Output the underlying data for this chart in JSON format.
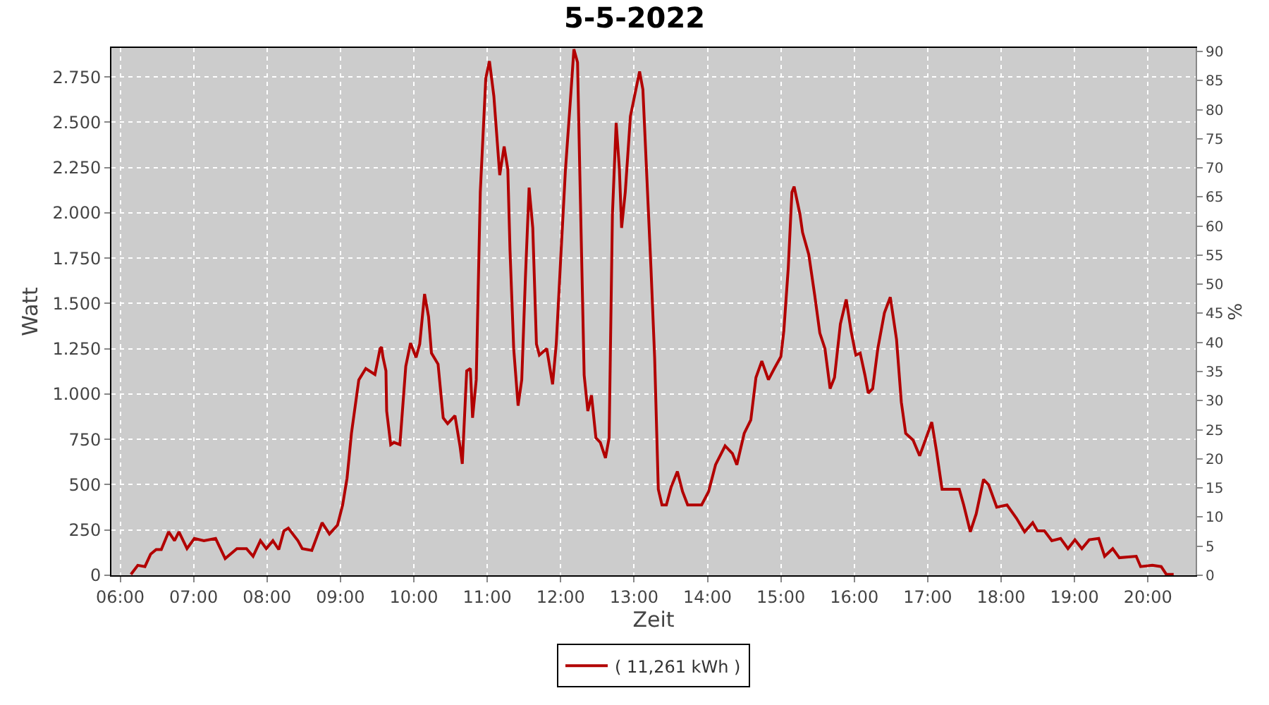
{
  "chart_data": {
    "type": "line",
    "title": "5-5-2022",
    "xlabel": "Zeit",
    "ylabel": "Watt",
    "y2label": "%",
    "x": [
      6.146,
      6.24,
      6.337,
      6.415,
      6.49,
      6.56,
      6.66,
      6.74,
      6.8,
      6.91,
      7.01,
      7.14,
      7.3,
      7.43,
      7.59,
      7.72,
      7.81,
      7.91,
      7.99,
      8.08,
      8.16,
      8.23,
      8.29,
      8.42,
      8.48,
      8.61,
      8.75,
      8.85,
      8.96,
      9.03,
      9.09,
      9.15,
      9.25,
      9.345,
      9.47,
      9.54,
      9.56,
      9.58,
      9.62,
      9.63,
      9.685,
      9.73,
      9.81,
      9.89,
      9.955,
      10.03,
      10.08,
      10.146,
      10.2,
      10.24,
      10.33,
      10.4,
      10.46,
      10.56,
      10.63,
      10.66,
      10.72,
      10.77,
      10.8,
      10.85,
      10.905,
      10.98,
      11.03,
      11.09,
      11.17,
      11.23,
      11.28,
      11.31,
      11.36,
      11.42,
      11.47,
      11.52,
      11.57,
      11.62,
      11.67,
      11.71,
      11.81,
      11.89,
      11.94,
      12.0,
      12.065,
      12.13,
      12.18,
      12.23,
      12.26,
      12.32,
      12.37,
      12.42,
      12.48,
      12.54,
      12.61,
      12.66,
      12.705,
      12.756,
      12.8,
      12.83,
      12.88,
      12.95,
      13.075,
      13.12,
      13.23,
      13.28,
      13.33,
      13.38,
      13.44,
      13.505,
      13.59,
      13.66,
      13.73,
      13.92,
      14.015,
      14.11,
      14.24,
      14.34,
      14.4,
      14.5,
      14.59,
      14.66,
      14.74,
      14.83,
      14.91,
      15.0,
      15.04,
      15.1,
      15.15,
      15.18,
      15.26,
      15.295,
      15.38,
      15.46,
      15.53,
      15.6,
      15.67,
      15.73,
      15.81,
      15.89,
      15.955,
      16.02,
      16.08,
      16.145,
      16.19,
      16.25,
      16.32,
      16.41,
      16.49,
      16.575,
      16.64,
      16.7,
      16.8,
      16.89,
      17.055,
      17.12,
      17.195,
      17.43,
      17.49,
      17.58,
      17.66,
      17.76,
      17.83,
      17.94,
      18.08,
      18.21,
      18.32,
      18.43,
      18.495,
      18.59,
      18.69,
      18.81,
      18.91,
      19.005,
      19.1,
      19.2,
      19.33,
      19.41,
      19.52,
      19.61,
      19.84,
      19.9,
      20.06,
      20.18,
      20.25,
      20.35
    ],
    "series": [
      {
        "name": "( 11,261 kWh )",
        "color": "#b20000",
        "values": [
          5,
          55,
          48,
          117,
          142,
          142,
          240,
          191,
          240,
          147,
          203,
          191,
          203,
          92,
          147,
          147,
          105,
          191,
          147,
          191,
          142,
          245,
          260,
          191,
          147,
          137,
          290,
          228,
          277,
          388,
          536,
          783,
          1078,
          1141,
          1108,
          1251,
          1259,
          1203,
          1128,
          906,
          721,
          733,
          721,
          1153,
          1281,
          1202,
          1276,
          1552,
          1428,
          1226,
          1165,
          869,
          837,
          881,
          709,
          615,
          1128,
          1141,
          869,
          1079,
          2114,
          2743,
          2837,
          2644,
          2208,
          2366,
          2240,
          1794,
          1251,
          936,
          1079,
          1646,
          2139,
          1917,
          1276,
          1215,
          1251,
          1054,
          1276,
          1744,
          2237,
          2607,
          2903,
          2830,
          2240,
          1104,
          906,
          993,
          758,
          733,
          647,
          758,
          1991,
          2496,
          2240,
          1917,
          2114,
          2533,
          2780,
          2681,
          1695,
          1202,
          475,
          388,
          388,
          487,
          573,
          462,
          388,
          388,
          462,
          610,
          714,
          672,
          610,
          783,
          857,
          1091,
          1182,
          1079,
          1141,
          1207,
          1350,
          1695,
          2114,
          2145,
          1991,
          1892,
          1769,
          1547,
          1337,
          1251,
          1030,
          1091,
          1387,
          1522,
          1350,
          1215,
          1226,
          1104,
          1005,
          1030,
          1251,
          1448,
          1535,
          1301,
          956,
          783,
          746,
          659,
          845,
          684,
          475,
          475,
          388,
          240,
          339,
          529,
          499,
          376,
          388,
          314,
          240,
          290,
          245,
          245,
          191,
          203,
          147,
          196,
          147,
          196,
          203,
          105,
          147,
          97,
          105,
          48,
          55,
          48,
          5,
          5
        ]
      }
    ],
    "xlim": [
      5.88,
      20.65
    ],
    "xticks": [
      {
        "value": 6,
        "label": "06:00"
      },
      {
        "value": 7,
        "label": "07:00"
      },
      {
        "value": 8,
        "label": "08:00"
      },
      {
        "value": 9,
        "label": "09:00"
      },
      {
        "value": 10,
        "label": "10:00"
      },
      {
        "value": 11,
        "label": "11:00"
      },
      {
        "value": 12,
        "label": "12:00"
      },
      {
        "value": 13,
        "label": "13:00"
      },
      {
        "value": 14,
        "label": "14:00"
      },
      {
        "value": 15,
        "label": "15:00"
      },
      {
        "value": 16,
        "label": "16:00"
      },
      {
        "value": 17,
        "label": "17:00"
      },
      {
        "value": 18,
        "label": "18:00"
      },
      {
        "value": 19,
        "label": "19:00"
      },
      {
        "value": 20,
        "label": "20:00"
      }
    ],
    "ylim": [
      0,
      2910
    ],
    "yticks": [
      {
        "value": 0,
        "label": "0"
      },
      {
        "value": 250,
        "label": "250"
      },
      {
        "value": 500,
        "label": "500"
      },
      {
        "value": 750,
        "label": "750"
      },
      {
        "value": 1000,
        "label": "1.000"
      },
      {
        "value": 1250,
        "label": "1.250"
      },
      {
        "value": 1500,
        "label": "1.500"
      },
      {
        "value": 1750,
        "label": "1.750"
      },
      {
        "value": 2000,
        "label": "2.000"
      },
      {
        "value": 2250,
        "label": "2.250"
      },
      {
        "value": 2500,
        "label": "2.500"
      },
      {
        "value": 2750,
        "label": "2.750"
      }
    ],
    "y2lim": [
      0,
      90.6
    ],
    "y2ticks": [
      0,
      5,
      10,
      15,
      20,
      25,
      30,
      35,
      40,
      45,
      50,
      55,
      60,
      65,
      70,
      75,
      80,
      85,
      90
    ],
    "grid": true,
    "legend": "bottom",
    "marker": "none",
    "line_style": "solid"
  }
}
